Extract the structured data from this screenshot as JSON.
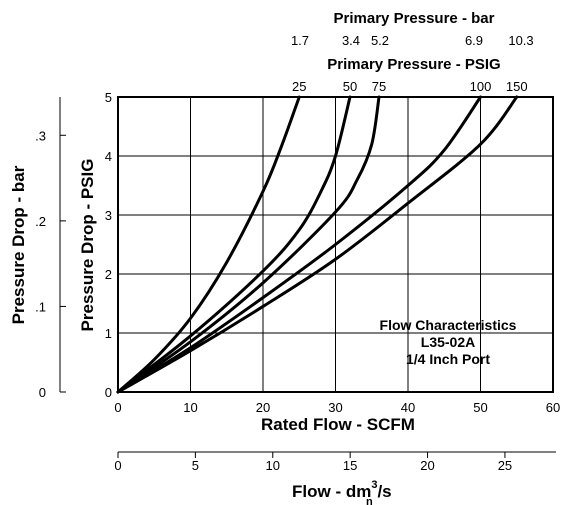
{
  "chart_data": {
    "type": "line",
    "top_title_1": "Primary Pressure - bar",
    "top_ticks_1": [
      "1.7",
      "3.4",
      "5.2",
      "6.9",
      "10.3"
    ],
    "top_title_2": "Primary Pressure - PSIG",
    "top_ticks_2": [
      "25",
      "50",
      "75",
      "100",
      "150"
    ],
    "xlabel": "Rated Flow - SCFM",
    "xlim": [
      0,
      60
    ],
    "xticks": [
      0,
      10,
      20,
      30,
      40,
      50,
      60
    ],
    "ylabel": "Pressure Drop - PSIG",
    "ylim": [
      0,
      5
    ],
    "yticks": [
      0,
      1,
      2,
      3,
      4,
      5
    ],
    "ylabel_bar": "Pressure Drop - bar",
    "yticks_bar": [
      "0",
      ".1",
      ".2",
      ".3"
    ],
    "ybar_values": [
      0,
      0.1,
      0.2,
      0.3
    ],
    "bottom_label_main": "Flow - dm",
    "bottom_label_sup": "3",
    "bottom_label_tail": "/s",
    "bottom_label_sub": "n",
    "bottom_xlim": [
      0,
      28.3
    ],
    "bottom_xticks": [
      0,
      5,
      10,
      15,
      20,
      25
    ],
    "annotation": [
      "Flow Characteristics",
      "L35-02A",
      "1/4 Inch Port"
    ],
    "grid": true,
    "series": [
      {
        "name": "25",
        "x": [
          0,
          5,
          10,
          15,
          20,
          22.5,
          25
        ],
        "y": [
          0,
          0.55,
          1.25,
          2.2,
          3.4,
          4.15,
          5.0
        ]
      },
      {
        "name": "50",
        "x": [
          0,
          10,
          20,
          25,
          28,
          30,
          32
        ],
        "y": [
          0,
          0.95,
          2.05,
          2.75,
          3.4,
          4.0,
          5.0
        ]
      },
      {
        "name": "75",
        "x": [
          0,
          10,
          20,
          30,
          33,
          35,
          36
        ],
        "y": [
          0,
          0.85,
          1.85,
          3.05,
          3.6,
          4.2,
          5.0
        ]
      },
      {
        "name": "100",
        "x": [
          0,
          10,
          20,
          30,
          40,
          45,
          50
        ],
        "y": [
          0,
          0.75,
          1.6,
          2.5,
          3.5,
          4.1,
          5.0
        ]
      },
      {
        "name": "150",
        "x": [
          0,
          10,
          20,
          30,
          40,
          50,
          55
        ],
        "y": [
          0,
          0.7,
          1.45,
          2.25,
          3.2,
          4.2,
          5.0
        ]
      }
    ]
  }
}
